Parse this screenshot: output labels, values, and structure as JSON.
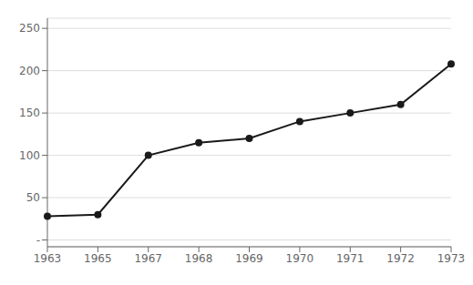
{
  "chart_data": {
    "type": "line",
    "categories": [
      "1963",
      "1965",
      "1967",
      "1968",
      "1969",
      "1970",
      "1971",
      "1972",
      "1973"
    ],
    "values": [
      28,
      30,
      100,
      115,
      120,
      140,
      150,
      160,
      208
    ],
    "color": "#1a1a1a",
    "marker": "circle",
    "ylim": [
      -8,
      262
    ],
    "yticks": [
      {
        "value": 0,
        "label": "-"
      },
      50,
      100,
      150,
      200,
      250
    ],
    "grid": true
  }
}
